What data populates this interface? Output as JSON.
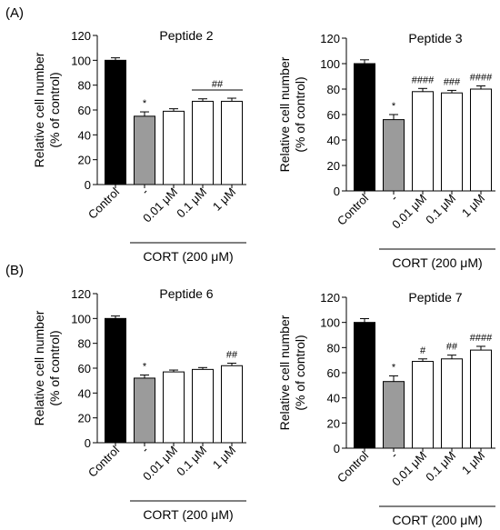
{
  "section_labels": [
    "(A)",
    "(B)"
  ],
  "chart_data": [
    {
      "type": "bar",
      "title": "Peptide 2",
      "ylabel_line1": "Relative cell number",
      "ylabel_line2": "(% of control)",
      "ylim": [
        0,
        120
      ],
      "yticks": [
        0,
        20,
        40,
        60,
        80,
        100,
        120
      ],
      "categories": [
        "Control",
        "-",
        "0.01 μM",
        "0.1 μM",
        "1 μM"
      ],
      "values": [
        100,
        55,
        59,
        67,
        67
      ],
      "errors": [
        2,
        3.5,
        2,
        2,
        2.5
      ],
      "fills": [
        "#000000",
        "#9b9b9b",
        "#ffffff",
        "#ffffff",
        "#ffffff"
      ],
      "annotations": [
        {
          "from": 1,
          "to": 1,
          "text": "*"
        },
        {
          "from": 3,
          "to": 4,
          "text": "##",
          "bracket": true
        }
      ],
      "group_label": "CORT (200 μM)"
    },
    {
      "type": "bar",
      "title": "Peptide 3",
      "ylabel_line1": "Relative cell number",
      "ylabel_line2": "(% of control)",
      "ylim": [
        0,
        120
      ],
      "yticks": [
        0,
        20,
        40,
        60,
        80,
        100,
        120
      ],
      "categories": [
        "Control",
        "-",
        "0.01 μM",
        "0.1 μM",
        "1 μM"
      ],
      "values": [
        100,
        56,
        78,
        77,
        80
      ],
      "errors": [
        3,
        4,
        2.5,
        2,
        2.5
      ],
      "fills": [
        "#000000",
        "#9b9b9b",
        "#ffffff",
        "#ffffff",
        "#ffffff"
      ],
      "annotations": [
        {
          "from": 1,
          "to": 1,
          "text": "*"
        },
        {
          "from": 2,
          "to": 2,
          "text": "####"
        },
        {
          "from": 3,
          "to": 3,
          "text": "###"
        },
        {
          "from": 4,
          "to": 4,
          "text": "####"
        }
      ],
      "group_label": "CORT (200 μM)"
    },
    {
      "type": "bar",
      "title": "Peptide 6",
      "ylabel_line1": "Relative cell number",
      "ylabel_line2": "(% of control)",
      "ylim": [
        0,
        120
      ],
      "yticks": [
        0,
        20,
        40,
        60,
        80,
        100,
        120
      ],
      "categories": [
        "Control",
        "-",
        "0.01 μM",
        "0.1 μM",
        "1 μM"
      ],
      "values": [
        100,
        52,
        57,
        59,
        62
      ],
      "errors": [
        2,
        2.5,
        1.5,
        1.5,
        2
      ],
      "fills": [
        "#000000",
        "#9b9b9b",
        "#ffffff",
        "#ffffff",
        "#ffffff"
      ],
      "annotations": [
        {
          "from": 1,
          "to": 1,
          "text": "*"
        },
        {
          "from": 4,
          "to": 4,
          "text": "##"
        }
      ],
      "group_label": "CORT (200 μM)"
    },
    {
      "type": "bar",
      "title": "Peptide 7",
      "ylabel_line1": "Relative cell number",
      "ylabel_line2": "(% of control)",
      "ylim": [
        0,
        120
      ],
      "yticks": [
        0,
        20,
        40,
        60,
        80,
        100,
        120
      ],
      "categories": [
        "Control",
        "-",
        "0.01 μM",
        "0.1 μM",
        "1 μM"
      ],
      "values": [
        100,
        53,
        69,
        71,
        78
      ],
      "errors": [
        3,
        4.5,
        2,
        3,
        3
      ],
      "fills": [
        "#000000",
        "#9b9b9b",
        "#ffffff",
        "#ffffff",
        "#ffffff"
      ],
      "annotations": [
        {
          "from": 1,
          "to": 1,
          "text": "*"
        },
        {
          "from": 2,
          "to": 2,
          "text": "#"
        },
        {
          "from": 3,
          "to": 3,
          "text": "##"
        },
        {
          "from": 4,
          "to": 4,
          "text": "####"
        }
      ],
      "group_label": "CORT (200 μM)"
    }
  ]
}
